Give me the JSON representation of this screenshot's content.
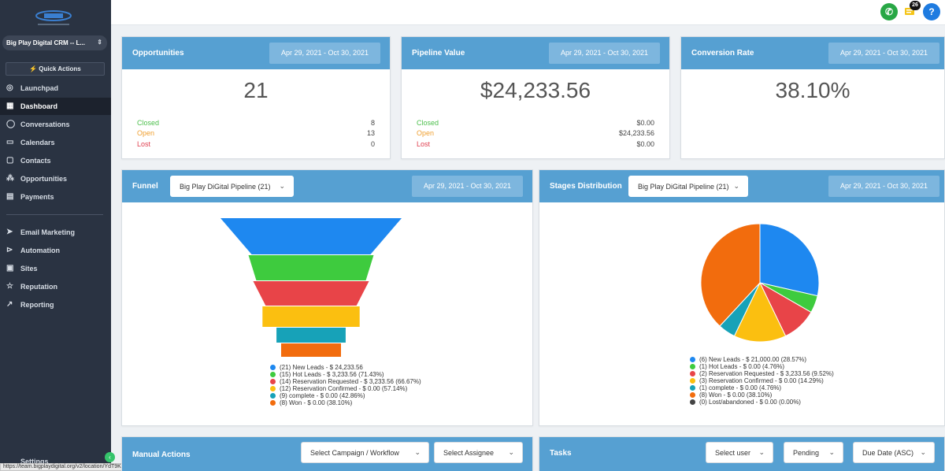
{
  "sidebar": {
    "account_name": "Big Play Digital CRM -- L...",
    "quick_actions_label": "Quick Actions",
    "items": [
      {
        "label": "Launchpad",
        "icon": "rocket-icon"
      },
      {
        "label": "Dashboard",
        "icon": "grid-icon",
        "active": true
      },
      {
        "label": "Conversations",
        "icon": "chat-icon"
      },
      {
        "label": "Calendars",
        "icon": "calendar-icon"
      },
      {
        "label": "Contacts",
        "icon": "contacts-icon"
      },
      {
        "label": "Opportunities",
        "icon": "funnel-icon"
      },
      {
        "label": "Payments",
        "icon": "payments-icon"
      },
      {
        "label": "Email Marketing",
        "icon": "send-icon"
      },
      {
        "label": "Automation",
        "icon": "automation-icon"
      },
      {
        "label": "Sites",
        "icon": "sites-icon"
      },
      {
        "label": "Reputation",
        "icon": "star-icon"
      },
      {
        "label": "Reporting",
        "icon": "trend-icon"
      }
    ],
    "settings_label": "Settings"
  },
  "status_url": "https://team.bigplaydigital.org/v2/location/YdT9KUiRqhTHYA1tTmyQ/dashboard",
  "topbar": {
    "notification_count": "26",
    "help_label": "?"
  },
  "opportunities": {
    "title": "Opportunities",
    "date_range": "Apr 29, 2021 - Oct 30, 2021",
    "total": "21",
    "rows": [
      {
        "label": "Closed",
        "value": "8"
      },
      {
        "label": "Open",
        "value": "13"
      },
      {
        "label": "Lost",
        "value": "0"
      }
    ]
  },
  "pipeline_value": {
    "title": "Pipeline Value",
    "date_range": "Apr 29, 2021 - Oct 30, 2021",
    "total": "$24,233.56",
    "rows": [
      {
        "label": "Closed",
        "value": "$0.00"
      },
      {
        "label": "Open",
        "value": "$24,233.56"
      },
      {
        "label": "Lost",
        "value": "$0.00"
      }
    ]
  },
  "conversion_rate": {
    "title": "Conversion Rate",
    "date_range": "Apr 29, 2021 - Oct 30, 2021",
    "total": "38.10%"
  },
  "funnel": {
    "title": "Funnel",
    "pipeline_select": "Big Play DiGital Pipeline (21)",
    "date_range": "Apr 29, 2021 - Oct 30, 2021",
    "legend": [
      "(21) New Leads - $ 24,233.56",
      "(15) Hot Leads - $ 3,233.56 (71.43%)",
      "(14) Reservation Requested - $ 3,233.56 (66.67%)",
      "(12) Reservation Confirmed - $ 0.00 (57.14%)",
      "(9) complete - $ 0.00 (42.86%)",
      "(8) Won - $ 0.00 (38.10%)"
    ]
  },
  "stages": {
    "title": "Stages Distribution",
    "pipeline_select": "Big Play DiGital Pipeline (21)",
    "date_range": "Apr 29, 2021 - Oct 30, 2021",
    "legend": [
      "(6) New Leads - $ 21,000.00 (28.57%)",
      "(1) Hot Leads - $ 0.00 (4.76%)",
      "(2) Reservation Requested - $ 3,233.56 (9.52%)",
      "(3) Reservation Confirmed - $ 0.00 (14.29%)",
      "(1) complete - $ 0.00 (4.76%)",
      "(8) Won - $ 0.00 (38.10%)",
      "(0) Lost/abandoned - $ 0.00 (0.00%)"
    ]
  },
  "manual_actions": {
    "title": "Manual Actions",
    "campaign_select": "Select Campaign / Workflow",
    "assignee_select": "Select Assignee"
  },
  "tasks": {
    "title": "Tasks",
    "user_select": "Select user",
    "status_select": "Pending",
    "sort_select": "Due Date (ASC)"
  },
  "colors": {
    "header_blue": "#56a0d2",
    "stage_colors": [
      "#1e88f0",
      "#3ecb3e",
      "#e84448",
      "#fbbf10",
      "#17a2b8",
      "#f26c0d",
      "#444444"
    ]
  },
  "chart_data": [
    {
      "type": "funnel",
      "categories": [
        "New Leads",
        "Hot Leads",
        "Reservation Requested",
        "Reservation Confirmed",
        "complete",
        "Won"
      ],
      "counts": [
        21,
        15,
        14,
        12,
        9,
        8
      ],
      "values": [
        24233.56,
        3233.56,
        3233.56,
        0.0,
        0.0,
        0.0
      ],
      "percentages": [
        null,
        71.43,
        66.67,
        57.14,
        42.86,
        38.1
      ]
    },
    {
      "type": "pie",
      "categories": [
        "New Leads",
        "Hot Leads",
        "Reservation Requested",
        "Reservation Confirmed",
        "complete",
        "Won",
        "Lost/abandoned"
      ],
      "counts": [
        6,
        1,
        2,
        3,
        1,
        8,
        0
      ],
      "values": [
        21000.0,
        0.0,
        3233.56,
        0.0,
        0.0,
        0.0,
        0.0
      ],
      "percentages": [
        28.57,
        4.76,
        9.52,
        14.29,
        4.76,
        38.1,
        0.0
      ],
      "legend_position": "bottom"
    }
  ]
}
